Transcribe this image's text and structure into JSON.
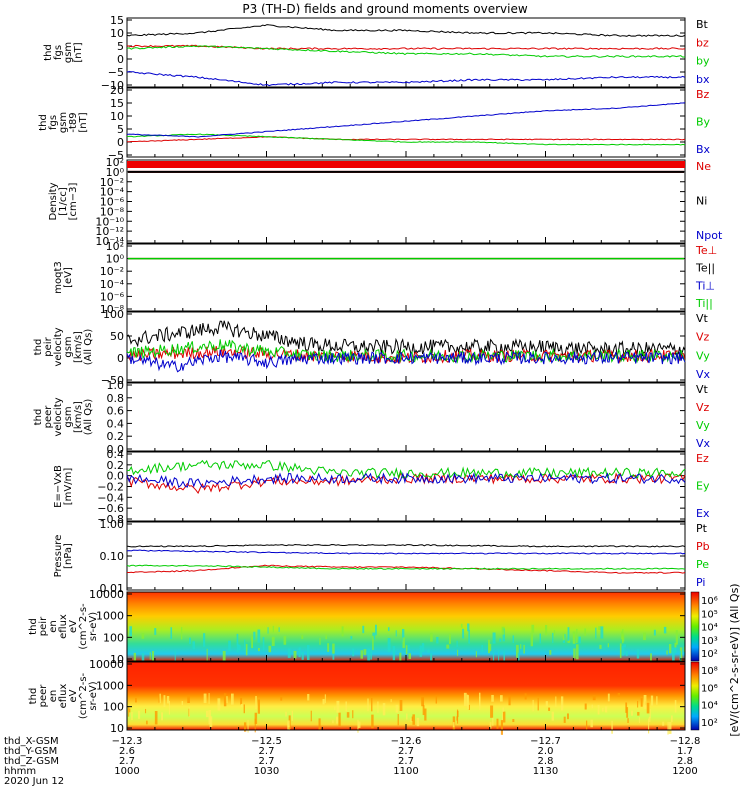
{
  "title": "P3 (TH-D) fields and ground moments overview",
  "colors": {
    "black": "#000000",
    "red": "#dd0000",
    "green": "#00cc00",
    "blue": "#0000cc",
    "frame": "#000000"
  },
  "panels": [
    {
      "id": "fgs-gsm",
      "ylabel": [
        "thd",
        "fgs",
        "gsm",
        "[nT]"
      ],
      "yticks": [
        "15",
        "10",
        "5",
        "0",
        "−5",
        "−10"
      ],
      "legend": [
        {
          "text": "Bt",
          "color": "#000000"
        },
        {
          "text": "bz",
          "color": "#dd0000"
        },
        {
          "text": "by",
          "color": "#00cc00"
        },
        {
          "text": "bx",
          "color": "#0000cc"
        }
      ]
    },
    {
      "id": "fgs-gsm-t89",
      "ylabel": [
        "thd",
        "fgs",
        "gsm",
        "-t89",
        "[nT]"
      ],
      "yticks": [
        "20",
        "15",
        "10",
        "5",
        "0",
        "−5"
      ],
      "legend": [
        {
          "text": "Bz",
          "color": "#dd0000"
        },
        {
          "text": "By",
          "color": "#00cc00"
        },
        {
          "text": "Bx",
          "color": "#0000cc"
        }
      ]
    },
    {
      "id": "density",
      "ylabel": [
        "Density",
        "[1/cc]",
        "[cm−3]"
      ],
      "yticks": [
        "10²",
        "10⁰",
        "10⁻²",
        "10⁻⁴",
        "10⁻⁶",
        "10⁻⁸",
        "10⁻¹⁰",
        "10⁻¹²",
        "10⁻¹⁴"
      ],
      "legend": [
        {
          "text": "Ne",
          "color": "#dd0000"
        },
        {
          "text": "Ni",
          "color": "#000000"
        },
        {
          "text": "Npot",
          "color": "#0000cc"
        }
      ]
    },
    {
      "id": "temperature",
      "ylabel": [
        "moqt3",
        "[eV]"
      ],
      "yticks": [
        "10²",
        "10⁰",
        "10⁻²",
        "10⁻⁴",
        "10⁻⁶",
        "10⁻⁸"
      ],
      "legend": [
        {
          "text": "Te⊥",
          "color": "#dd0000"
        },
        {
          "text": "Te||",
          "color": "#000000"
        },
        {
          "text": "Ti⊥",
          "color": "#0000cc"
        },
        {
          "text": "Ti||",
          "color": "#00cc00"
        }
      ]
    },
    {
      "id": "peir-velocity",
      "ylabel": [
        "thd",
        "peir",
        "velocity",
        "gsm",
        "[km/s]",
        "(All Qs)"
      ],
      "yticks": [
        "100",
        "50",
        "0",
        "−50"
      ],
      "legend": [
        {
          "text": "Vt",
          "color": "#000000"
        },
        {
          "text": "Vz",
          "color": "#dd0000"
        },
        {
          "text": "Vy",
          "color": "#00cc00"
        },
        {
          "text": "Vx",
          "color": "#0000cc"
        }
      ]
    },
    {
      "id": "peer-velocity",
      "ylabel": [
        "thd",
        "peer",
        "velocity",
        "gsm",
        "[km/s]",
        "(All Qs)"
      ],
      "yticks": [
        "1.0",
        "0.8",
        "0.6",
        "0.4",
        "0.2",
        "0.0"
      ],
      "legend": [
        {
          "text": "Vt",
          "color": "#000000"
        },
        {
          "text": "Vz",
          "color": "#dd0000"
        },
        {
          "text": "Vy",
          "color": "#00cc00"
        },
        {
          "text": "Vx",
          "color": "#0000cc"
        }
      ]
    },
    {
      "id": "e-field",
      "ylabel": [
        "E=−VxB",
        "[mV/m]"
      ],
      "yticks": [
        "0.4",
        "0.2",
        "0.0",
        "−0.2",
        "−0.4",
        "−0.6",
        "−0.8"
      ],
      "legend": [
        {
          "text": "Ez",
          "color": "#dd0000"
        },
        {
          "text": "Ey",
          "color": "#00cc00"
        },
        {
          "text": "Ex",
          "color": "#0000cc"
        }
      ]
    },
    {
      "id": "pressure",
      "ylabel": [
        "Pressure",
        "[nPa]"
      ],
      "yticks": [
        "1.00",
        "0.10",
        "0.01"
      ],
      "legend": [
        {
          "text": "Pt",
          "color": "#000000"
        },
        {
          "text": "Pb",
          "color": "#dd0000"
        },
        {
          "text": "Pe",
          "color": "#00cc00"
        },
        {
          "text": "Pi",
          "color": "#0000cc"
        }
      ]
    },
    {
      "id": "peir-spec",
      "ylabel": [
        "thd",
        "peir",
        "en",
        "eflux",
        "eV",
        "(cm^2-s-",
        "sr-eV)"
      ],
      "yticks": [
        "10000",
        "1000",
        "100",
        "10"
      ],
      "colorbar_ticks": [
        "10⁶",
        "10⁵",
        "10⁴",
        "10³",
        "10²"
      ]
    },
    {
      "id": "peer-spec",
      "ylabel": [
        "thd",
        "peer",
        "en",
        "eflux",
        "eV",
        "(cm^2-s-",
        "sr-eV)"
      ],
      "yticks": [
        "10000",
        "1000",
        "100",
        "10"
      ],
      "colorbar_ticks": [
        "10⁸",
        "10⁶",
        "10⁴",
        "10²"
      ]
    }
  ],
  "colorbar_label": "[eV/(cm^2-s-sr-eV)] (All Qs)",
  "xaxis": {
    "rows": [
      {
        "label": "thd_X-GSM",
        "values": [
          "−12.3",
          "−12.5",
          "−12.6",
          "−12.7",
          "−12.8"
        ]
      },
      {
        "label": "thd_Y-GSM",
        "values": [
          "2.6",
          "2.7",
          "2.7",
          "2.0",
          "1.7"
        ]
      },
      {
        "label": "thd_Z-GSM",
        "values": [
          "2.7",
          "2.7",
          "2.7",
          "2.8",
          "2.8"
        ]
      },
      {
        "label": "hhmm",
        "values": [
          "1000",
          "1030",
          "1100",
          "1130",
          "1200"
        ]
      }
    ],
    "date": "2020 Jun 12"
  },
  "chart_data": [
    {
      "type": "line",
      "panel": "fgs-gsm",
      "ylabel": "thd fgs gsm [nT]",
      "x_label": "hhmm",
      "ylim": [
        -10,
        15
      ],
      "x": [
        "1000",
        "1015",
        "1030",
        "1045",
        "1100",
        "1115",
        "1130",
        "1145",
        "1200"
      ],
      "series": [
        {
          "name": "Bt",
          "color": "#000000",
          "values": [
            9,
            10,
            13,
            11,
            11,
            10,
            10,
            9,
            9
          ]
        },
        {
          "name": "bz",
          "color": "#dd0000",
          "values": [
            5,
            5,
            4,
            4,
            4,
            4,
            4,
            4,
            4
          ]
        },
        {
          "name": "by",
          "color": "#00cc00",
          "values": [
            4,
            5,
            4,
            3,
            2,
            2,
            1,
            1,
            1
          ]
        },
        {
          "name": "bx",
          "color": "#0000cc",
          "values": [
            -5,
            -7,
            -10,
            -9,
            -9,
            -8,
            -8,
            -7,
            -7
          ]
        }
      ]
    },
    {
      "type": "line",
      "panel": "fgs-gsm-t89",
      "ylabel": "thd fgs gsm -t89 [nT]",
      "ylim": [
        -5,
        20
      ],
      "x": [
        "1000",
        "1015",
        "1030",
        "1045",
        "1100",
        "1115",
        "1130",
        "1145",
        "1200"
      ],
      "series": [
        {
          "name": "Bz",
          "color": "#dd0000",
          "values": [
            0,
            1,
            2,
            1,
            1,
            1,
            1,
            1,
            1
          ]
        },
        {
          "name": "By",
          "color": "#00cc00",
          "values": [
            2,
            3,
            2,
            1,
            0,
            0,
            -1,
            -1,
            -1
          ]
        },
        {
          "name": "Bx",
          "color": "#0000cc",
          "values": [
            3,
            2,
            4,
            6,
            8,
            10,
            12,
            13,
            15
          ]
        }
      ]
    },
    {
      "type": "line",
      "panel": "density",
      "ylabel": "Density [1/cc] [cm-3]",
      "yscale": "log",
      "ylim": [
        1e-14,
        100
      ],
      "x": [
        "1000",
        "1200"
      ],
      "series": [
        {
          "name": "Ne",
          "color": "#dd0000",
          "values": [
            1,
            1
          ]
        },
        {
          "name": "Ni",
          "color": "#000000",
          "values": [
            1,
            1
          ]
        }
      ]
    },
    {
      "type": "line",
      "panel": "temperature",
      "ylabel": "moqt3 [eV]",
      "yscale": "log",
      "ylim": [
        1e-08,
        100
      ],
      "x": [
        "1000",
        "1200"
      ],
      "series": [
        {
          "name": "Te⊥",
          "color": "#dd0000",
          "values": [
            1,
            1
          ]
        },
        {
          "name": "Ti||",
          "color": "#00cc00",
          "values": [
            1,
            1
          ]
        }
      ]
    },
    {
      "type": "line",
      "panel": "peir-velocity",
      "ylabel": "thd peir velocity gsm [km/s] (All Qs)",
      "ylim": [
        -50,
        100
      ],
      "x": [
        "1000",
        "1010",
        "1020",
        "1030",
        "1040",
        "1050",
        "1100",
        "1110",
        "1120",
        "1130",
        "1140",
        "1150",
        "1200"
      ],
      "series": [
        {
          "name": "Vt",
          "color": "#000000",
          "values": [
            40,
            55,
            70,
            50,
            30,
            25,
            25,
            25,
            25,
            25,
            20,
            20,
            20
          ]
        },
        {
          "name": "Vz",
          "color": "#dd0000",
          "values": [
            5,
            10,
            15,
            10,
            5,
            5,
            0,
            5,
            5,
            5,
            5,
            5,
            5
          ]
        },
        {
          "name": "Vy",
          "color": "#00cc00",
          "values": [
            10,
            20,
            30,
            15,
            5,
            5,
            5,
            5,
            5,
            5,
            5,
            5,
            5
          ]
        },
        {
          "name": "Vx",
          "color": "#0000cc",
          "values": [
            0,
            -20,
            5,
            -10,
            0,
            0,
            0,
            0,
            0,
            0,
            0,
            0,
            0
          ]
        }
      ]
    },
    {
      "type": "line",
      "panel": "peer-velocity",
      "ylabel": "thd peer velocity gsm [km/s] (All Qs)",
      "ylim": [
        0,
        1
      ],
      "series": []
    },
    {
      "type": "line",
      "panel": "e-field",
      "ylabel": "E=-VxB [mV/m]",
      "ylim": [
        -0.8,
        0.4
      ],
      "x": [
        "1000",
        "1015",
        "1030",
        "1045",
        "1100",
        "1115",
        "1130",
        "1145",
        "1200"
      ],
      "series": [
        {
          "name": "Ez",
          "color": "#dd0000",
          "values": [
            -0.1,
            -0.25,
            -0.1,
            -0.1,
            -0.05,
            -0.05,
            -0.05,
            -0.05,
            -0.05
          ]
        },
        {
          "name": "Ey",
          "color": "#00cc00",
          "values": [
            0.1,
            0.2,
            0.2,
            0.05,
            0.05,
            0.05,
            0.05,
            0.05,
            0.05
          ]
        },
        {
          "name": "Ex",
          "color": "#0000cc",
          "values": [
            -0.05,
            -0.15,
            -0.05,
            -0.05,
            -0.05,
            -0.05,
            -0.05,
            -0.05,
            -0.05
          ]
        }
      ]
    },
    {
      "type": "line",
      "panel": "pressure",
      "ylabel": "Pressure [nPa]",
      "yscale": "log",
      "ylim": [
        0.01,
        1
      ],
      "x": [
        "1000",
        "1015",
        "1030",
        "1045",
        "1100",
        "1115",
        "1130",
        "1145",
        "1200"
      ],
      "series": [
        {
          "name": "Pt",
          "color": "#000000",
          "values": [
            0.2,
            0.2,
            0.22,
            0.22,
            0.22,
            0.21,
            0.2,
            0.2,
            0.2
          ]
        },
        {
          "name": "Pb",
          "color": "#dd0000",
          "values": [
            0.03,
            0.035,
            0.05,
            0.045,
            0.045,
            0.04,
            0.035,
            0.03,
            0.03
          ]
        },
        {
          "name": "Pe",
          "color": "#00cc00",
          "values": [
            0.05,
            0.05,
            0.045,
            0.04,
            0.04,
            0.04,
            0.04,
            0.04,
            0.04
          ]
        },
        {
          "name": "Pi",
          "color": "#0000cc",
          "values": [
            0.15,
            0.14,
            0.13,
            0.12,
            0.12,
            0.12,
            0.12,
            0.12,
            0.12
          ]
        }
      ]
    },
    {
      "type": "heatmap",
      "panel": "peir-spec",
      "ylabel": "thd peir en eflux eV (cm^2-s-sr-eV)",
      "yscale": "log",
      "ylim": [
        10,
        10000
      ],
      "x_range": [
        "1000",
        "1200"
      ]
    },
    {
      "type": "heatmap",
      "panel": "peer-spec",
      "ylabel": "thd peer en eflux eV (cm^2-s-sr-eV)",
      "yscale": "log",
      "ylim": [
        10,
        10000
      ],
      "x_range": [
        "1000",
        "1200"
      ]
    }
  ]
}
